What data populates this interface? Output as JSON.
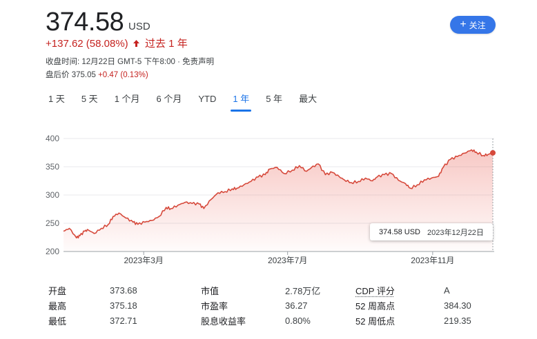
{
  "quote": {
    "price": "374.58",
    "currency": "USD",
    "change": "+137.62 (58.08%)",
    "period": "过去 1 年",
    "close_info": "收盘时间: 12月22日 GMT-5 下午8:00 · 免责声明",
    "after_hours_label": "盘后价",
    "after_hours_price": "375.05",
    "after_hours_change": "+0.47 (0.13%)",
    "up_color": "#c5221f"
  },
  "follow_button": {
    "label": "关注",
    "color": "#3576e8"
  },
  "tabs": [
    {
      "label": "1 天",
      "active": false
    },
    {
      "label": "5 天",
      "active": false
    },
    {
      "label": "1 个月",
      "active": false
    },
    {
      "label": "6 个月",
      "active": false
    },
    {
      "label": "YTD",
      "active": false
    },
    {
      "label": "1 年",
      "active": true
    },
    {
      "label": "5 年",
      "active": false
    },
    {
      "label": "最大",
      "active": false
    }
  ],
  "tooltip": {
    "price": "374.58 USD",
    "date": "2023年12月22日"
  },
  "chart_data": {
    "type": "area",
    "title": "",
    "xlabel": "",
    "ylabel": "",
    "ylim": [
      200,
      400
    ],
    "yticks": [
      200,
      250,
      300,
      350,
      400
    ],
    "xtick_labels": [
      "2023年3月",
      "2023年7月",
      "2023年11月"
    ],
    "xtick_dates": [
      "2023-03-01",
      "2023-07-01",
      "2023-11-01"
    ],
    "x_range": [
      "2022-12-23",
      "2023-12-22"
    ],
    "grid": "horizontal",
    "line_color": "#d6493b",
    "series": [
      {
        "dates": [
          "2022-12-23",
          "2022-12-28",
          "2023-01-03",
          "2023-01-06",
          "2023-01-10",
          "2023-01-13",
          "2023-01-18",
          "2023-01-24",
          "2023-01-30",
          "2023-02-03",
          "2023-02-08",
          "2023-02-14",
          "2023-02-20",
          "2023-02-24",
          "2023-03-02",
          "2023-03-08",
          "2023-03-14",
          "2023-03-20",
          "2023-03-24",
          "2023-03-30",
          "2023-04-05",
          "2023-04-11",
          "2023-04-17",
          "2023-04-21",
          "2023-04-27",
          "2023-05-03",
          "2023-05-09",
          "2023-05-15",
          "2023-05-19",
          "2023-05-25",
          "2023-05-31",
          "2023-06-06",
          "2023-06-12",
          "2023-06-16",
          "2023-06-22",
          "2023-06-28",
          "2023-07-05",
          "2023-07-11",
          "2023-07-17",
          "2023-07-21",
          "2023-07-27",
          "2023-08-02",
          "2023-08-08",
          "2023-08-14",
          "2023-08-18",
          "2023-08-24",
          "2023-08-30",
          "2023-09-05",
          "2023-09-11",
          "2023-09-15",
          "2023-09-21",
          "2023-09-27",
          "2023-10-03",
          "2023-10-09",
          "2023-10-13",
          "2023-10-19",
          "2023-10-25",
          "2023-10-31",
          "2023-11-06",
          "2023-11-10",
          "2023-11-16",
          "2023-11-22",
          "2023-11-28",
          "2023-12-04",
          "2023-12-08",
          "2023-12-14",
          "2023-12-18",
          "2023-12-22"
        ],
        "values": [
          236,
          241,
          224,
          228,
          236,
          238,
          232,
          241,
          248,
          262,
          268,
          259,
          252,
          248,
          252,
          255,
          262,
          278,
          276,
          282,
          287,
          285,
          284,
          276,
          292,
          304,
          306,
          311,
          312,
          318,
          324,
          332,
          336,
          346,
          349,
          338,
          344,
          352,
          342,
          348,
          355,
          336,
          340,
          332,
          327,
          322,
          324,
          330,
          325,
          332,
          336,
          338,
          326,
          320,
          312,
          318,
          327,
          330,
          333,
          349,
          363,
          368,
          374,
          380,
          376,
          370,
          372,
          374.58
        ]
      }
    ]
  },
  "stats": [
    [
      {
        "label": "开盘",
        "value": "373.68"
      },
      {
        "label": "市值",
        "value": "2.78万亿"
      },
      {
        "label": "CDP 评分",
        "value": "A"
      }
    ],
    [
      {
        "label": "最高",
        "value": "375.18"
      },
      {
        "label": "市盈率",
        "value": "36.27"
      },
      {
        "label": "52 周高点",
        "value": "384.30"
      }
    ],
    [
      {
        "label": "最低",
        "value": "372.71"
      },
      {
        "label": "股息收益率",
        "value": "0.80%"
      },
      {
        "label": "52 周低点",
        "value": "219.35"
      }
    ]
  ]
}
